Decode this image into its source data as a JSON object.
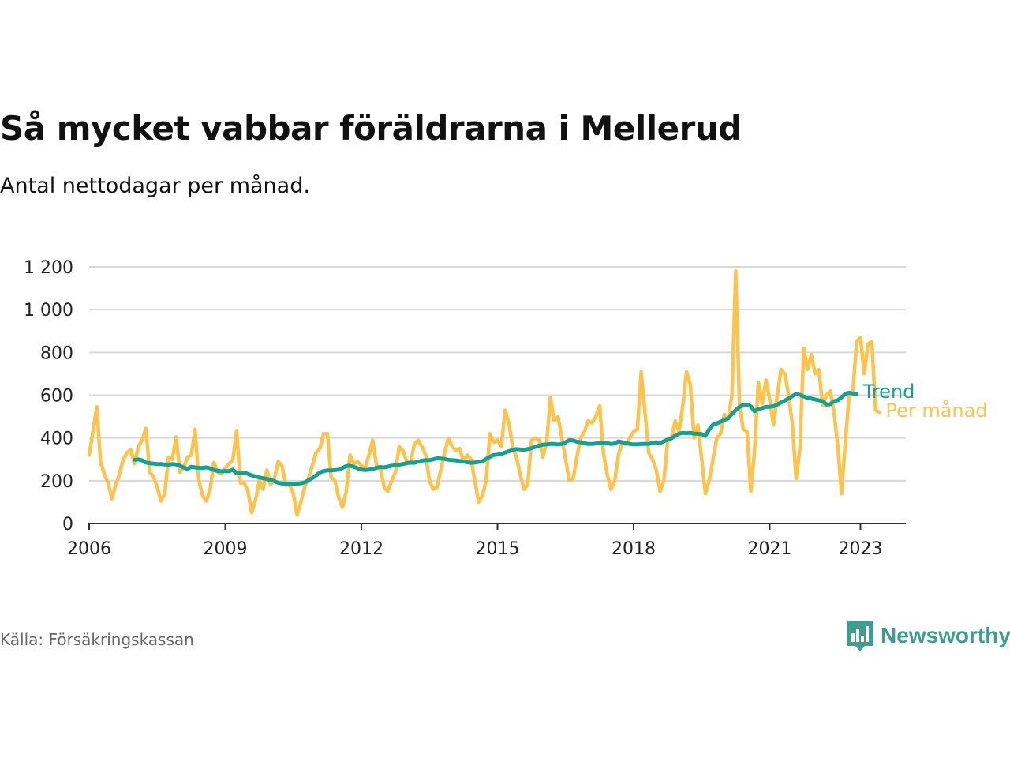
{
  "header": {
    "title": "Så mycket vabbar föräldrarna i Mellerud",
    "subtitle": "Antal nettodagar per månad."
  },
  "footer": {
    "source": "Källa: Försäkringskassan",
    "brand": "Newsworthy",
    "brand_icon": "bar-chart-logo-icon"
  },
  "colors": {
    "monthly": "#ffc34d",
    "trend": "#1a9e8f",
    "grid": "#d9d9d9",
    "axis": "#333333",
    "brand": "#3f9c8f"
  },
  "chart_data": {
    "type": "line",
    "xlabel": "",
    "ylabel": "",
    "xlim": [
      2006,
      2024
    ],
    "ylim": [
      0,
      1200
    ],
    "x_ticks": [
      2006,
      2009,
      2012,
      2015,
      2018,
      2021,
      2023
    ],
    "x_tick_labels": [
      "2006",
      "2009",
      "2012",
      "2015",
      "2018",
      "2021",
      "2023"
    ],
    "y_ticks": [
      0,
      200,
      400,
      600,
      800,
      1000,
      1200
    ],
    "y_tick_labels": [
      "0",
      "200",
      "400",
      "600",
      "800",
      "1 000",
      "1 200"
    ],
    "grid": true,
    "series": [
      {
        "name": "Per månad",
        "label": "Per månad",
        "start": "2006-01",
        "monthly": true,
        "values": [
          320,
          430,
          545,
          290,
          230,
          190,
          115,
          180,
          230,
          300,
          330,
          345,
          280,
          360,
          390,
          445,
          240,
          220,
          170,
          105,
          140,
          310,
          300,
          405,
          240,
          260,
          310,
          320,
          440,
          200,
          130,
          105,
          160,
          285,
          240,
          230,
          260,
          280,
          295,
          435,
          190,
          190,
          150,
          50,
          110,
          200,
          160,
          250,
          180,
          210,
          290,
          270,
          180,
          180,
          140,
          40,
          100,
          170,
          210,
          270,
          330,
          350,
          420,
          420,
          215,
          200,
          120,
          75,
          150,
          320,
          280,
          290,
          270,
          260,
          320,
          390,
          270,
          260,
          170,
          150,
          200,
          240,
          360,
          340,
          290,
          280,
          370,
          390,
          360,
          320,
          200,
          160,
          170,
          250,
          330,
          400,
          360,
          340,
          350,
          290,
          320,
          300,
          200,
          100,
          130,
          200,
          420,
          380,
          390,
          360,
          530,
          470,
          360,
          310,
          230,
          160,
          180,
          390,
          400,
          390,
          310,
          380,
          590,
          480,
          500,
          400,
          300,
          200,
          210,
          310,
          400,
          430,
          480,
          470,
          500,
          550,
          330,
          230,
          160,
          200,
          320,
          380,
          370,
          400,
          430,
          440,
          710,
          520,
          330,
          300,
          250,
          150,
          200,
          380,
          400,
          480,
          430,
          550,
          710,
          650,
          400,
          460,
          300,
          140,
          200,
          300,
          400,
          420,
          510,
          490,
          600,
          1180,
          550,
          440,
          430,
          150,
          340,
          660,
          560,
          670,
          580,
          460,
          600,
          720,
          700,
          600,
          460,
          210,
          350,
          820,
          720,
          790,
          700,
          720,
          550,
          600,
          620,
          520,
          360,
          140,
          380,
          600,
          620,
          850,
          870,
          700,
          840,
          850,
          530,
          520
        ]
      },
      {
        "name": "Trend",
        "label": "Trend",
        "start": "2007-01",
        "monthly": true,
        "values": [
          298,
          300,
          295,
          285,
          282,
          280,
          278,
          278,
          276,
          275,
          278,
          276,
          270,
          262,
          255,
          265,
          262,
          260,
          260,
          262,
          258,
          250,
          246,
          244,
          245,
          244,
          252,
          235,
          236,
          238,
          232,
          225,
          220,
          215,
          212,
          208,
          204,
          198,
          190,
          187,
          187,
          186,
          186,
          186,
          188,
          192,
          202,
          212,
          225,
          238,
          245,
          248,
          248,
          250,
          252,
          260,
          268,
          270,
          265,
          258,
          252,
          250,
          252,
          255,
          260,
          264,
          262,
          266,
          270,
          272,
          275,
          278,
          282,
          285,
          284,
          290,
          294,
          296,
          296,
          300,
          305,
          304,
          302,
          298,
          296,
          295,
          292,
          290,
          286,
          284,
          285,
          288,
          290,
          302,
          312,
          320,
          322,
          325,
          332,
          338,
          344,
          348,
          346,
          345,
          348,
          352,
          358,
          364,
          368,
          370,
          372,
          372,
          370,
          372,
          380,
          390,
          388,
          382,
          380,
          376,
          372,
          372,
          374,
          376,
          378,
          376,
          372,
          374,
          384,
          380,
          376,
          372,
          370,
          370,
          372,
          372,
          372,
          378,
          380,
          376,
          384,
          392,
          398,
          410,
          420,
          424,
          422,
          424,
          420,
          420,
          418,
          410,
          440,
          462,
          468,
          476,
          484,
          492,
          512,
          530,
          545,
          555,
          556,
          548,
          525,
          535,
          540,
          545,
          546,
          548,
          556,
          566,
          575,
          585,
          596,
          606,
          602,
          594,
          588,
          584,
          580,
          576,
          572,
          556,
          558,
          572,
          576,
          590,
          606,
          612,
          608,
          606
        ]
      }
    ]
  }
}
